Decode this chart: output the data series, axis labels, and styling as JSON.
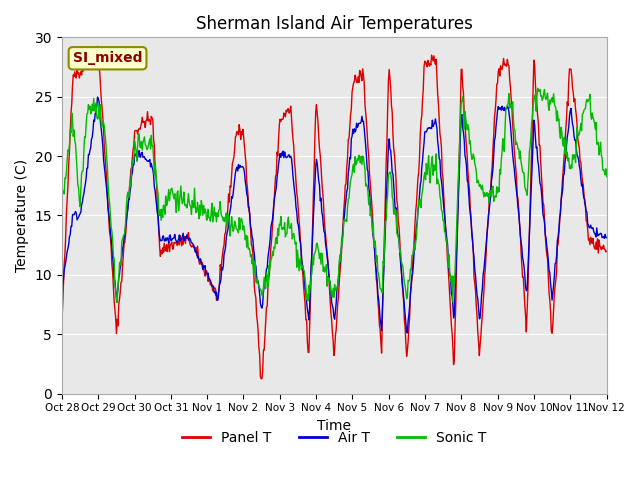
{
  "title": "Sherman Island Air Temperatures",
  "xlabel": "Time",
  "ylabel": "Temperature (C)",
  "ylim": [
    0,
    30
  ],
  "background_color": "#e8e8e8",
  "annotation_text": "SI_mixed",
  "annotation_bg": "#ffffcc",
  "annotation_border": "#8B8B00",
  "annotation_text_color": "#8B0000",
  "colors": {
    "panel": "#dd0000",
    "air": "#0000cc",
    "sonic": "#00bb00"
  },
  "legend_labels": [
    "Panel T",
    "Air T",
    "Sonic T"
  ],
  "x_tick_labels": [
    "Oct 28",
    "Oct 29",
    "Oct 30",
    "Oct 31",
    "Nov 1",
    "Nov 2",
    "Nov 3",
    "Nov 4",
    "Nov 5",
    "Nov 6",
    "Nov 7",
    "Nov 8",
    "Nov 9",
    "Nov 10",
    "Nov 11",
    "Nov 12"
  ],
  "num_days": 15,
  "start_day": 0
}
